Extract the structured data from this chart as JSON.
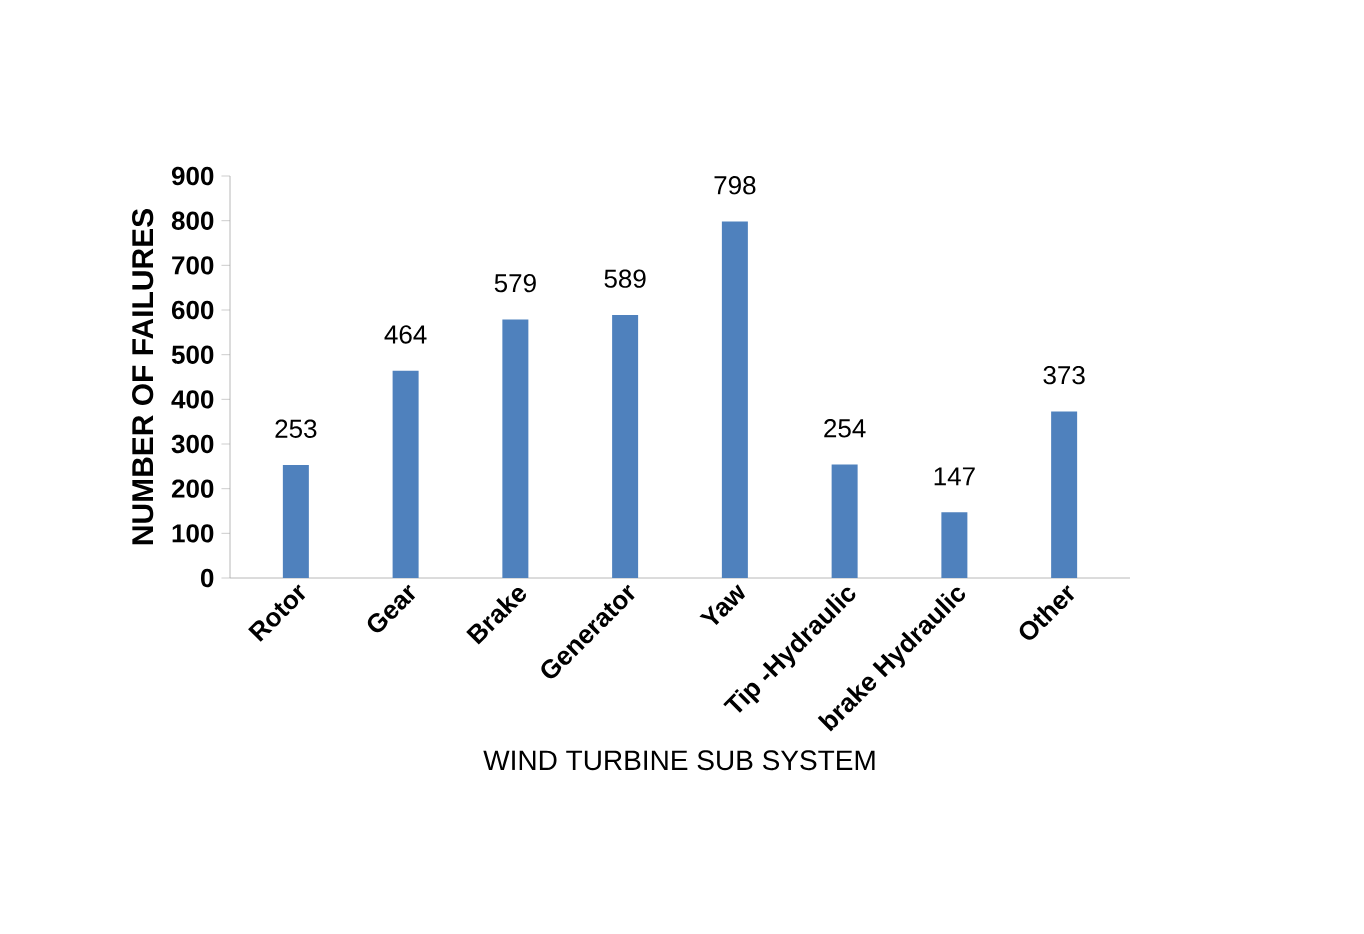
{
  "chart_data": {
    "type": "bar",
    "xlabel": "WIND TURBINE SUB SYSTEM",
    "ylabel": "NUMBER  OF FAILURES",
    "categories": [
      "Rotor",
      "Gear",
      "Brake",
      "Generator",
      "Yaw",
      "Tip -Hydraulic",
      "brake Hydraulic",
      "Other"
    ],
    "values": [
      253,
      464,
      579,
      589,
      798,
      254,
      147,
      373
    ],
    "color": "#4f81bd",
    "ylim": [
      0,
      900
    ],
    "yticks": [
      0,
      100,
      200,
      300,
      400,
      500,
      600,
      700,
      800,
      900
    ],
    "grid": false,
    "data_labels": true
  }
}
